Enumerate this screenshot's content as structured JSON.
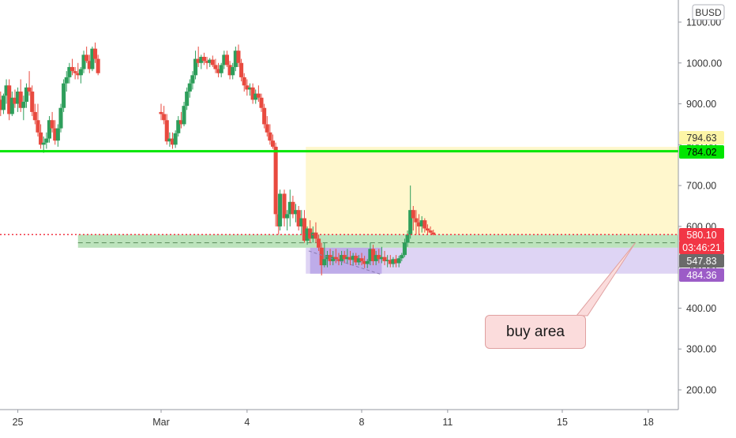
{
  "chart_data": {
    "type": "candlestick",
    "quote_currency": "BUSD",
    "ylim": [
      150,
      1160
    ],
    "y_ticks": [
      1100,
      1000,
      900,
      800,
      700,
      600,
      500,
      400,
      300,
      200
    ],
    "y_tick_labels": [
      "1100.00",
      "1000.00",
      "900.00",
      "800.00",
      "700.00",
      "600.00",
      "500.00",
      "400.00",
      "300.00",
      "200.00"
    ],
    "x_tick_labels": [
      {
        "label": "25",
        "day": -5
      },
      {
        "label": "Mar",
        "day": 0
      },
      {
        "label": "4",
        "day": 3
      },
      {
        "label": "8",
        "day": 7
      },
      {
        "label": "11",
        "day": 10
      },
      {
        "label": "15",
        "day": 14
      },
      {
        "label": "18",
        "day": 17
      }
    ],
    "price_labels": [
      {
        "value": 794.63,
        "text": "794.63",
        "color": "#fdf5a6",
        "text_color": "#333333"
      },
      {
        "value": 784.02,
        "text": "784.02",
        "color": "#00e600",
        "text_color": "#000000"
      },
      {
        "value": 580.1,
        "text": "580.10",
        "color": "#f23645",
        "text_color": "#ffffff"
      },
      {
        "value": 560.0,
        "text": "03:46:21",
        "color": "#f23645",
        "text_color": "#ffffff"
      },
      {
        "value": 547.83,
        "text": "547.83",
        "color": "#6a6a6a",
        "text_color": "#ffffff"
      },
      {
        "value": 484.36,
        "text": "484.36",
        "color": "#9c5cc7",
        "text_color": "#ffffff"
      }
    ],
    "horizontal_line": {
      "value": 784.02,
      "color": "#00e600"
    },
    "current_price_line": {
      "value": 580.1,
      "color": "#f23645"
    },
    "zones": [
      {
        "name": "yellow-zone",
        "from_day": 5.05,
        "to_day": 19,
        "top": 794.63,
        "bottom": 580.1,
        "color": "#fff6c4"
      },
      {
        "name": "green-zone",
        "from_day": -2.9,
        "to_day": 19,
        "top": 580.1,
        "bottom": 547.83,
        "color": "#a5d9a5"
      },
      {
        "name": "purple-zone",
        "from_day": 5.05,
        "to_day": 19,
        "top": 547.83,
        "bottom": 484.36,
        "color": "#d8cdf2"
      },
      {
        "name": "purple-zone-dark",
        "from_day": 5.2,
        "to_day": 7.7,
        "top": 547.83,
        "bottom": 484.36,
        "color": "#b8a4e6"
      }
    ],
    "annotation": {
      "text": "buy area",
      "arrow_to_day": 16.55,
      "arrow_to_value": 560
    },
    "colors": {
      "up": "#26a69a",
      "down": "#ef5350",
      "upbody": "#2e9e5b",
      "downbody": "#e84a3f"
    },
    "candles": [
      [
        -8.0,
        1000,
        1030,
        970,
        985
      ],
      [
        -7.9,
        985,
        1010,
        940,
        950
      ],
      [
        -7.8,
        950,
        1000,
        945,
        995
      ],
      [
        -7.7,
        995,
        1050,
        990,
        1040
      ],
      [
        -7.6,
        1040,
        1070,
        1010,
        1015
      ],
      [
        -7.5,
        1015,
        1100,
        1010,
        1090
      ],
      [
        -7.4,
        1090,
        1160,
        1080,
        1150
      ],
      [
        -7.3,
        1150,
        1165,
        1100,
        1110
      ],
      [
        -7.2,
        1110,
        1130,
        1060,
        1070
      ],
      [
        -7.1,
        1070,
        1090,
        1020,
        1030
      ],
      [
        -7.0,
        1030,
        1060,
        980,
        990
      ],
      [
        -6.9,
        990,
        1080,
        985,
        1070
      ],
      [
        -6.8,
        1070,
        1150,
        1060,
        1140
      ],
      [
        -6.7,
        1140,
        1175,
        1120,
        1160
      ],
      [
        -6.6,
        1160,
        1175,
        1090,
        1100
      ],
      [
        -6.5,
        1100,
        1130,
        1050,
        1060
      ],
      [
        -6.4,
        1060,
        1075,
        1010,
        1020
      ],
      [
        -6.3,
        1020,
        1050,
        930,
        945
      ],
      [
        -6.2,
        945,
        960,
        900,
        915
      ],
      [
        -6.1,
        915,
        950,
        905,
        940
      ],
      [
        -6.0,
        940,
        945,
        860,
        870
      ],
      [
        -5.9,
        870,
        905,
        840,
        895
      ],
      [
        -5.8,
        895,
        950,
        885,
        940
      ],
      [
        -5.7,
        940,
        955,
        900,
        910
      ],
      [
        -5.6,
        910,
        930,
        870,
        885
      ],
      [
        -5.5,
        885,
        925,
        875,
        920
      ],
      [
        -5.4,
        920,
        960,
        900,
        945
      ],
      [
        -5.3,
        945,
        960,
        860,
        875
      ],
      [
        -5.2,
        875,
        930,
        870,
        915
      ],
      [
        -5.1,
        915,
        935,
        890,
        900
      ],
      [
        -5.0,
        900,
        940,
        880,
        930
      ],
      [
        -4.9,
        930,
        960,
        880,
        890
      ],
      [
        -4.8,
        890,
        920,
        860,
        905
      ],
      [
        -4.7,
        905,
        950,
        890,
        940
      ],
      [
        -4.6,
        940,
        980,
        920,
        930
      ],
      [
        -4.5,
        930,
        945,
        870,
        880
      ],
      [
        -4.4,
        880,
        900,
        850,
        860
      ],
      [
        -4.3,
        860,
        900,
        820,
        830
      ],
      [
        -4.2,
        830,
        850,
        790,
        800
      ],
      [
        -4.1,
        800,
        820,
        780,
        805
      ],
      [
        -4.0,
        805,
        830,
        790,
        815
      ],
      [
        -3.9,
        815,
        870,
        805,
        860
      ],
      [
        -3.8,
        860,
        880,
        830,
        840
      ],
      [
        -3.7,
        840,
        860,
        800,
        810
      ],
      [
        -3.6,
        810,
        850,
        795,
        840
      ],
      [
        -3.5,
        840,
        900,
        830,
        890
      ],
      [
        -3.4,
        890,
        960,
        880,
        950
      ],
      [
        -3.3,
        950,
        980,
        930,
        965
      ],
      [
        -3.2,
        965,
        1000,
        950,
        990
      ],
      [
        -3.1,
        990,
        1010,
        970,
        980
      ],
      [
        -3.0,
        980,
        990,
        960,
        975
      ],
      [
        -2.9,
        975,
        1000,
        960,
        970
      ],
      [
        -2.8,
        970,
        990,
        950,
        985
      ],
      [
        -2.7,
        985,
        1030,
        975,
        1020
      ],
      [
        -2.6,
        1020,
        1040,
        1000,
        1005
      ],
      [
        -2.5,
        1005,
        1020,
        975,
        985
      ],
      [
        -2.4,
        985,
        1040,
        980,
        1035
      ],
      [
        -2.3,
        1035,
        1050,
        1000,
        1010
      ],
      [
        -2.2,
        1010,
        1020,
        970,
        975
      ]
    ],
    "candles_visible": [
      [
        0.0,
        880,
        900,
        860,
        875
      ],
      [
        0.1,
        875,
        895,
        850,
        860
      ],
      [
        0.2,
        860,
        875,
        800,
        808
      ],
      [
        0.3,
        808,
        830,
        795,
        815
      ],
      [
        0.4,
        815,
        830,
        790,
        800
      ],
      [
        0.5,
        800,
        835,
        792,
        828
      ],
      [
        0.6,
        828,
        870,
        820,
        860
      ],
      [
        0.7,
        860,
        880,
        840,
        850
      ],
      [
        0.8,
        850,
        905,
        845,
        895
      ],
      [
        0.9,
        895,
        940,
        885,
        930
      ],
      [
        1.0,
        930,
        960,
        915,
        950
      ],
      [
        1.1,
        950,
        980,
        935,
        970
      ],
      [
        1.2,
        970,
        1030,
        960,
        1010
      ],
      [
        1.3,
        1010,
        1040,
        990,
        1000
      ],
      [
        1.4,
        1000,
        1020,
        985,
        1015
      ],
      [
        1.5,
        1015,
        1025,
        995,
        1005
      ],
      [
        1.6,
        1005,
        1015,
        985,
        1000
      ],
      [
        1.7,
        1000,
        1012,
        990,
        1008
      ],
      [
        1.8,
        1008,
        1018,
        990,
        995
      ],
      [
        1.9,
        995,
        1010,
        975,
        985
      ],
      [
        2.0,
        985,
        1000,
        965,
        975
      ],
      [
        2.1,
        975,
        1000,
        965,
        995
      ],
      [
        2.2,
        995,
        1030,
        985,
        1020
      ],
      [
        2.3,
        1020,
        1030,
        990,
        995
      ],
      [
        2.4,
        995,
        1005,
        960,
        970
      ],
      [
        2.5,
        970,
        1000,
        960,
        990
      ],
      [
        2.6,
        990,
        1040,
        980,
        1030
      ],
      [
        2.7,
        1030,
        1045,
        990,
        1000
      ],
      [
        2.8,
        1000,
        1010,
        955,
        965
      ],
      [
        2.9,
        965,
        975,
        930,
        945
      ],
      [
        3.0,
        945,
        960,
        920,
        935
      ],
      [
        3.1,
        935,
        950,
        920,
        940
      ],
      [
        3.2,
        940,
        950,
        900,
        910
      ],
      [
        3.3,
        910,
        935,
        900,
        925
      ],
      [
        3.4,
        925,
        945,
        905,
        915
      ],
      [
        3.5,
        915,
        925,
        880,
        890
      ],
      [
        3.6,
        890,
        900,
        840,
        850
      ],
      [
        3.7,
        850,
        870,
        820,
        830
      ],
      [
        3.8,
        830,
        850,
        800,
        810
      ],
      [
        3.9,
        810,
        825,
        790,
        795
      ],
      [
        4.0,
        795,
        805,
        600,
        630
      ],
      [
        4.1,
        630,
        650,
        580,
        600
      ],
      [
        4.15,
        600,
        690,
        590,
        680
      ],
      [
        4.3,
        680,
        690,
        600,
        620
      ],
      [
        4.4,
        620,
        640,
        590,
        630
      ],
      [
        4.5,
        630,
        690,
        600,
        660
      ],
      [
        4.6,
        660,
        675,
        620,
        630
      ],
      [
        4.7,
        630,
        655,
        610,
        640
      ],
      [
        4.8,
        640,
        650,
        590,
        600
      ],
      [
        4.9,
        600,
        640,
        580,
        620
      ],
      [
        5.0,
        620,
        640,
        560,
        565
      ],
      [
        5.1,
        565,
        600,
        555,
        595
      ],
      [
        5.2,
        595,
        615,
        560,
        570
      ],
      [
        5.3,
        570,
        600,
        560,
        585
      ],
      [
        5.4,
        585,
        610,
        560,
        570
      ],
      [
        5.5,
        570,
        580,
        540,
        548
      ],
      [
        5.6,
        548,
        560,
        480,
        505
      ],
      [
        5.7,
        505,
        560,
        500,
        520
      ],
      [
        5.8,
        520,
        540,
        500,
        530
      ],
      [
        5.9,
        530,
        545,
        505,
        515
      ],
      [
        6.0,
        515,
        540,
        505,
        525
      ],
      [
        6.1,
        525,
        545,
        510,
        520
      ],
      [
        6.2,
        520,
        535,
        505,
        515
      ],
      [
        6.3,
        515,
        540,
        505,
        530
      ],
      [
        6.4,
        530,
        540,
        510,
        520
      ],
      [
        6.5,
        520,
        545,
        508,
        525
      ],
      [
        6.6,
        525,
        540,
        505,
        518
      ],
      [
        6.7,
        518,
        535,
        505,
        528
      ],
      [
        6.8,
        528,
        535,
        505,
        512
      ],
      [
        6.9,
        512,
        530,
        505,
        522
      ],
      [
        7.0,
        522,
        535,
        505,
        515
      ],
      [
        7.1,
        515,
        528,
        498,
        508
      ],
      [
        7.2,
        508,
        520,
        498,
        515
      ],
      [
        7.3,
        515,
        560,
        505,
        545
      ],
      [
        7.4,
        545,
        555,
        505,
        515
      ],
      [
        7.5,
        515,
        540,
        505,
        530
      ],
      [
        7.6,
        530,
        545,
        510,
        520
      ],
      [
        7.7,
        520,
        550,
        510,
        525
      ],
      [
        7.8,
        525,
        540,
        505,
        515
      ],
      [
        7.9,
        515,
        530,
        500,
        518
      ],
      [
        8.0,
        518,
        530,
        500,
        508
      ],
      [
        8.1,
        508,
        525,
        500,
        520
      ],
      [
        8.2,
        520,
        530,
        500,
        510
      ],
      [
        8.3,
        510,
        528,
        500,
        522
      ],
      [
        8.4,
        522,
        535,
        515,
        530
      ],
      [
        8.5,
        530,
        570,
        525,
        560
      ],
      [
        8.6,
        560,
        590,
        550,
        580
      ],
      [
        8.7,
        580,
        700,
        570,
        640
      ],
      [
        8.8,
        640,
        650,
        590,
        620
      ],
      [
        8.9,
        620,
        640,
        580,
        610
      ],
      [
        9.0,
        610,
        630,
        580,
        600
      ],
      [
        9.1,
        600,
        625,
        585,
        615
      ],
      [
        9.2,
        615,
        620,
        585,
        595
      ],
      [
        9.3,
        595,
        605,
        580,
        590
      ],
      [
        9.4,
        590,
        600,
        582,
        585
      ],
      [
        9.5,
        585,
        592,
        578,
        580
      ]
    ]
  }
}
